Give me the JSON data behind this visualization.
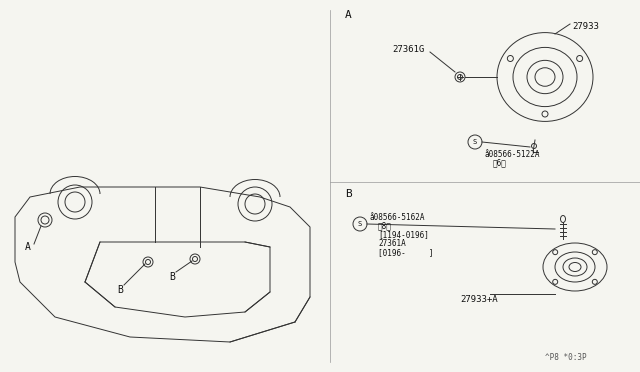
{
  "bg_color": "#f5f5f0",
  "line_color": "#333333",
  "title_bottom": "^P8 *0:3P",
  "section_A_label": "A",
  "section_B_label": "B",
  "part_27933_label": "27933",
  "part_27361G_label": "27361G",
  "part_08566_5122A_label": "å08566-5122A",
  "part_6_label": "（6）",
  "part_08566_5162A_label": "å08566-5162A",
  "part_8_label": "（8）",
  "part_date1_label": "[1194-0196]",
  "part_27361A_label": "27361A",
  "part_date2_label": "[0196-     ]",
  "part_27933A_label": "27933+A",
  "car_A_label": "A",
  "car_B1_label": "B",
  "car_B2_label": "B"
}
